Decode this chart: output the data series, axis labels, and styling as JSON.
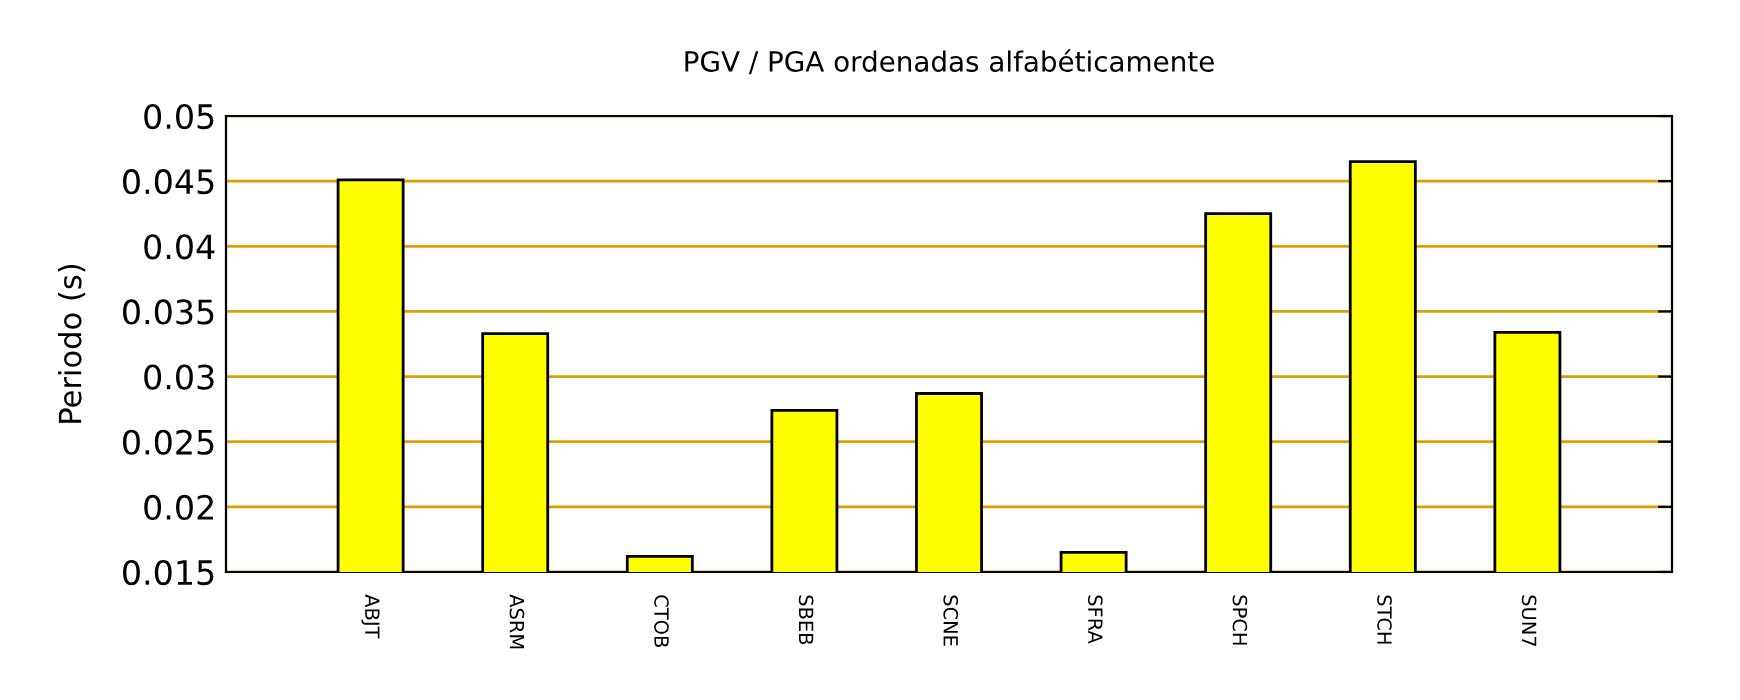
{
  "chart_data": {
    "type": "bar",
    "title": "PGV / PGA ordenadas alfabéticamente",
    "ylabel": "Periodo (s)",
    "categories": [
      "ABJT",
      "ASRM",
      "CTOB",
      "SBEB",
      "SCNE",
      "SFRA",
      "SPCH",
      "STCH",
      "SUN7"
    ],
    "values": [
      0.0451,
      0.0333,
      0.0162,
      0.0274,
      0.0287,
      0.0165,
      0.0425,
      0.0465,
      0.0334
    ],
    "color": "#ffff00",
    "ylim": [
      0.015,
      0.05
    ],
    "yticks": [
      0.015,
      0.02,
      0.025,
      0.03,
      0.035,
      0.04,
      0.045,
      0.05
    ],
    "grid": "y",
    "legend": false
  }
}
